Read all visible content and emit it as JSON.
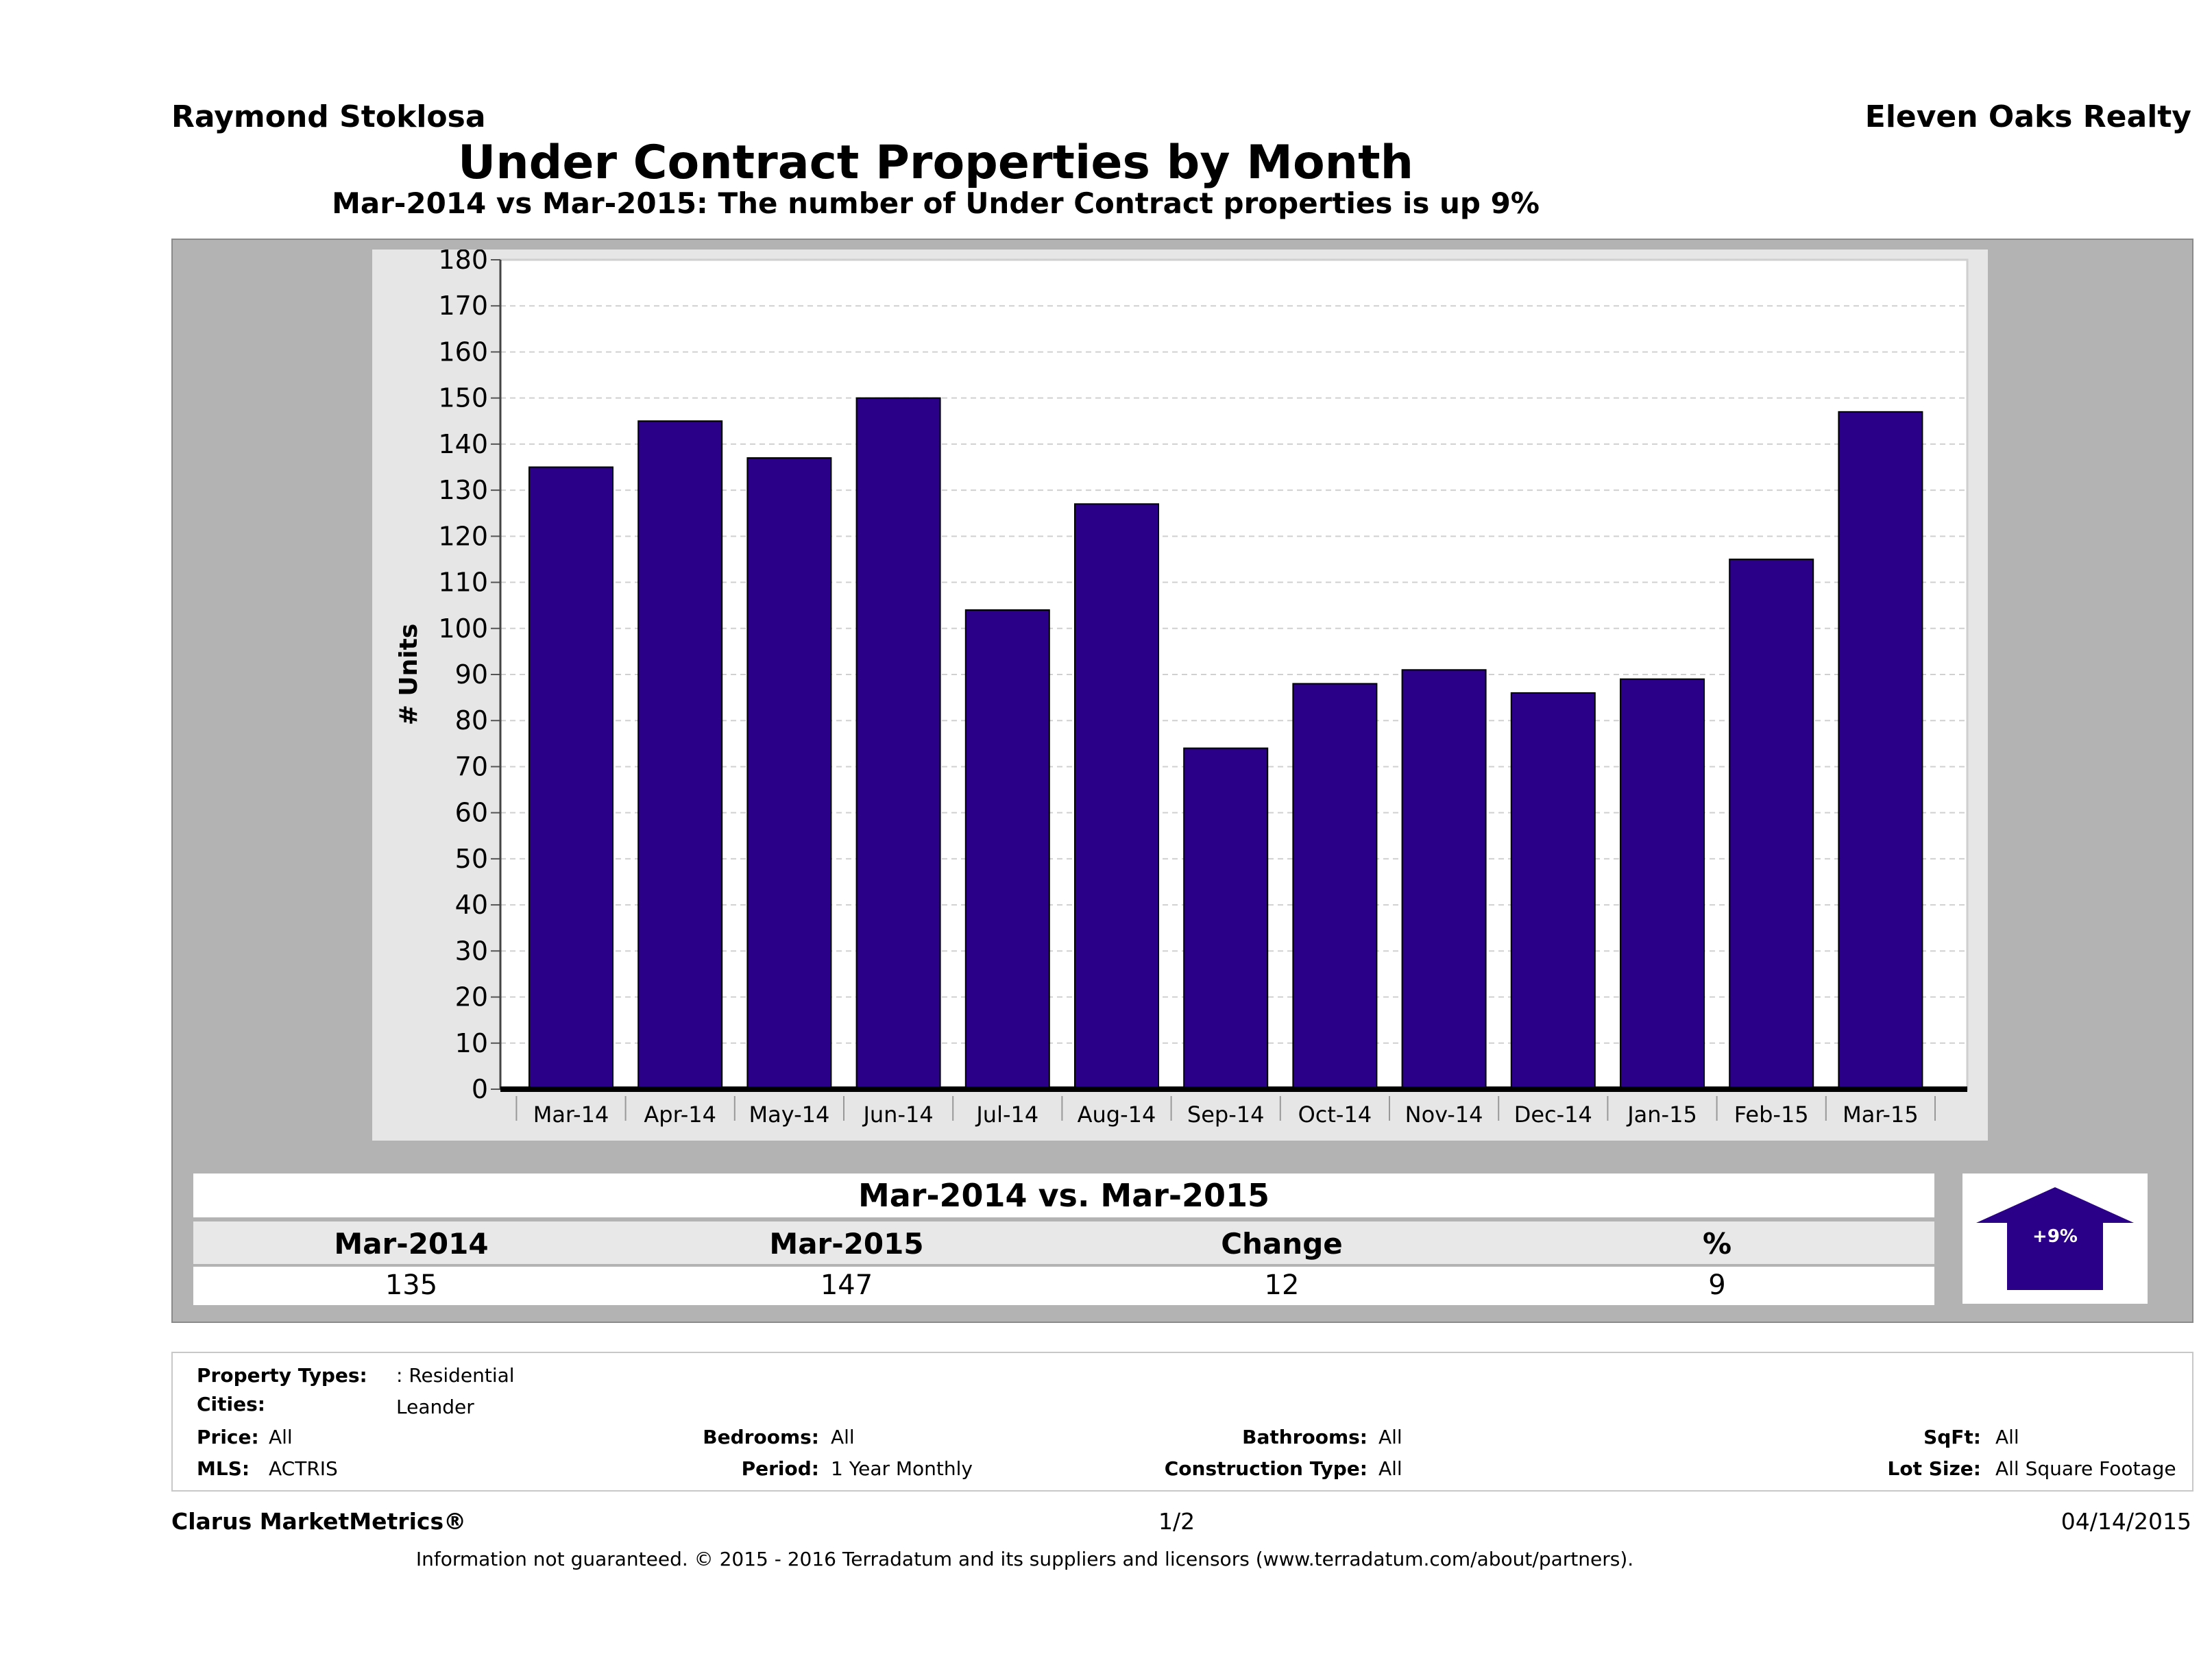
{
  "header": {
    "agent": "Raymond Stoklosa",
    "brokerage": "Eleven Oaks Realty",
    "title": "Under Contract Properties by Month",
    "subtitle": "Mar-2014 vs Mar-2015: The number of Under Contract  properties is up 9%"
  },
  "chart_data": {
    "type": "bar",
    "categories": [
      "Mar-14",
      "Apr-14",
      "May-14",
      "Jun-14",
      "Jul-14",
      "Aug-14",
      "Sep-14",
      "Oct-14",
      "Nov-14",
      "Dec-14",
      "Jan-15",
      "Feb-15",
      "Mar-15"
    ],
    "values": [
      135,
      145,
      137,
      150,
      104,
      127,
      74,
      88,
      91,
      86,
      89,
      115,
      147
    ],
    "ylabel": "# Units",
    "ylim": [
      0,
      180
    ],
    "yticks": [
      0,
      10,
      20,
      30,
      40,
      50,
      60,
      70,
      80,
      90,
      100,
      110,
      120,
      130,
      140,
      150,
      160,
      170,
      180
    ],
    "grid": true,
    "bar_color": "#2a0088"
  },
  "summary": {
    "title": "Mar-2014 vs. Mar-2015",
    "headers": [
      "Mar-2014",
      "Mar-2015",
      "Change",
      "%"
    ],
    "values": [
      "135",
      "147",
      "12",
      "9"
    ],
    "badge": "+9%",
    "badge_color": "#2a0088"
  },
  "criteria": {
    "property_types_label": "Property Types:",
    "property_types_value": ": Residential",
    "cities_label": "Cities:",
    "cities_value": "Leander",
    "price_label": "Price:",
    "price_value": "All",
    "bedrooms_label": "Bedrooms:",
    "bedrooms_value": "All",
    "bathrooms_label": "Bathrooms:",
    "bathrooms_value": "All",
    "sqft_label": "SqFt:",
    "sqft_value": "All",
    "mls_label": "MLS:",
    "mls_value": "ACTRIS",
    "period_label": "Period:",
    "period_value": "1 Year Monthly",
    "construction_label": "Construction Type:",
    "construction_value": "All",
    "lot_label": "Lot Size:",
    "lot_value": "All Square Footage"
  },
  "footer": {
    "product": "Clarus MarketMetrics®",
    "page": "1/2",
    "date": "04/14/2015",
    "disclaimer": "Information not guaranteed. © 2015 - 2016 Terradatum and its suppliers and licensors (www.terradatum.com/about/partners)."
  }
}
